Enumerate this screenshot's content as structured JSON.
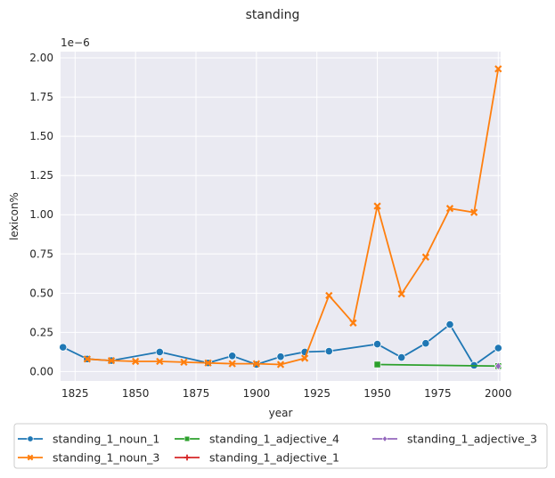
{
  "chart_data": {
    "type": "line",
    "title": "standing",
    "xlabel": "year",
    "ylabel": "lexicon%",
    "y_offset_label": "1e−6",
    "xlim": [
      1819,
      2001
    ],
    "ylim": [
      -0.06,
      2.04
    ],
    "xticks": [
      1825,
      1850,
      1875,
      1900,
      1925,
      1950,
      1975,
      2000
    ],
    "xtick_labels": [
      "1825",
      "1850",
      "1875",
      "1900",
      "1925",
      "1950",
      "1975",
      "2000"
    ],
    "yticks": [
      0,
      0.25,
      0.5,
      0.75,
      1.0,
      1.25,
      1.5,
      1.75,
      2.0
    ],
    "ytick_labels": [
      "0.00",
      "0.25",
      "0.50",
      "0.75",
      "1.00",
      "1.25",
      "1.50",
      "1.75",
      "2.00"
    ],
    "grid": true,
    "legend_position": "bottom",
    "series": [
      {
        "name": "standing_1_noun_1",
        "color": "#1f77b4",
        "marker": "circle",
        "x": [
          1820,
          1830,
          1840,
          1860,
          1880,
          1890,
          1900,
          1910,
          1920,
          1930,
          1950,
          1960,
          1970,
          1980,
          1990,
          2000
        ],
        "y": [
          0.155,
          0.08,
          0.07,
          0.125,
          0.055,
          0.1,
          0.045,
          0.095,
          0.125,
          0.13,
          0.175,
          0.09,
          0.18,
          0.3,
          0.04,
          0.15
        ]
      },
      {
        "name": "standing_1_noun_3",
        "color": "#ff7f0e",
        "marker": "x",
        "x": [
          1830,
          1840,
          1850,
          1860,
          1870,
          1880,
          1890,
          1900,
          1910,
          1920,
          1930,
          1940,
          1950,
          1960,
          1970,
          1980,
          1990,
          2000
        ],
        "y": [
          0.08,
          0.07,
          0.065,
          0.065,
          0.06,
          0.055,
          0.05,
          0.05,
          0.045,
          0.085,
          0.485,
          0.31,
          1.055,
          0.495,
          0.73,
          1.04,
          1.015,
          1.93
        ]
      },
      {
        "name": "standing_1_adjective_4",
        "color": "#2ca02c",
        "marker": "square",
        "x": [
          1950,
          2000
        ],
        "y": [
          0.045,
          0.035
        ]
      },
      {
        "name": "standing_1_adjective_1",
        "color": "#d62728",
        "marker": "plus",
        "x": [],
        "y": []
      },
      {
        "name": "standing_1_adjective_3",
        "color": "#9467bd",
        "marker": "diamond",
        "x": [
          2000
        ],
        "y": [
          0.035
        ]
      }
    ]
  }
}
